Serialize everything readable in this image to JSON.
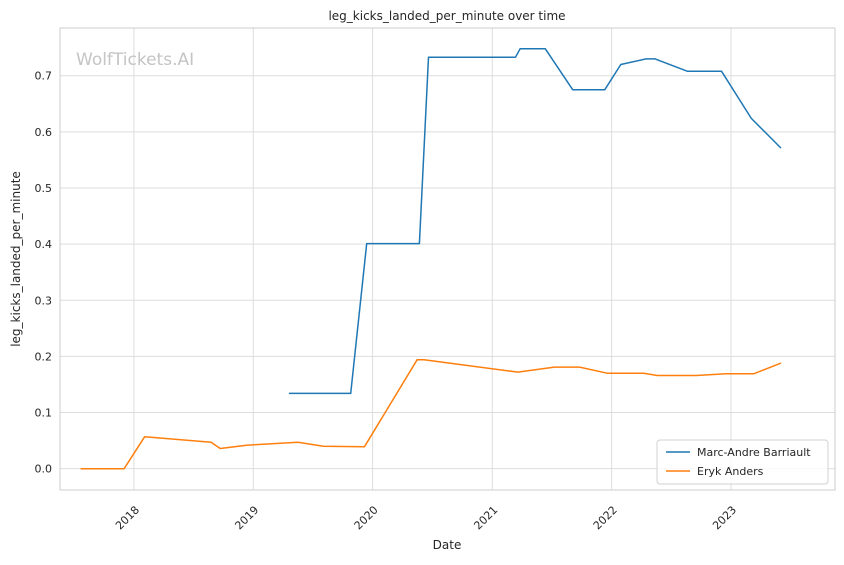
{
  "chart_data": {
    "type": "line",
    "title": "leg_kicks_landed_per_minute over time",
    "xlabel": "Date",
    "ylabel": "leg_kicks_landed_per_minute",
    "watermark": "WolfTickets.AI",
    "x_ticks": [
      "2018",
      "2019",
      "2020",
      "2021",
      "2022",
      "2023"
    ],
    "y_ticks": [
      "0.0",
      "0.1",
      "0.2",
      "0.3",
      "0.4",
      "0.5",
      "0.6",
      "0.7"
    ],
    "xlim": [
      "2017-05-20",
      "2023-11-15"
    ],
    "ylim": [
      -0.038,
      0.785
    ],
    "grid": true,
    "legend_position": "lower-right",
    "series": [
      {
        "name": "Marc-Andre Barriault",
        "color": "#1f77b4",
        "points": [
          [
            "2019-04-20",
            0.134
          ],
          [
            "2019-10-26",
            0.134
          ],
          [
            "2019-12-14",
            0.401
          ],
          [
            "2020-05-23",
            0.401
          ],
          [
            "2020-06-20",
            0.733
          ],
          [
            "2021-03-13",
            0.733
          ],
          [
            "2021-03-27",
            0.748
          ],
          [
            "2021-06-12",
            0.748
          ],
          [
            "2021-09-04",
            0.675
          ],
          [
            "2021-12-11",
            0.675
          ],
          [
            "2022-01-29",
            0.72
          ],
          [
            "2022-04-16",
            0.73
          ],
          [
            "2022-05-14",
            0.73
          ],
          [
            "2022-08-20",
            0.708
          ],
          [
            "2022-12-03",
            0.708
          ],
          [
            "2023-03-04",
            0.624
          ],
          [
            "2023-06-03",
            0.571
          ]
        ]
      },
      {
        "name": "Eryk Anders",
        "color": "#ff7f0e",
        "points": [
          [
            "2017-07-22",
            0.0
          ],
          [
            "2017-12-02",
            0.0
          ],
          [
            "2018-02-03",
            0.057
          ],
          [
            "2018-08-25",
            0.047
          ],
          [
            "2018-09-22",
            0.036
          ],
          [
            "2018-12-15",
            0.042
          ],
          [
            "2019-05-18",
            0.047
          ],
          [
            "2019-08-03",
            0.04
          ],
          [
            "2019-12-07",
            0.039
          ],
          [
            "2020-05-16",
            0.194
          ],
          [
            "2020-06-06",
            0.194
          ],
          [
            "2021-03-20",
            0.172
          ],
          [
            "2021-07-10",
            0.181
          ],
          [
            "2021-09-25",
            0.181
          ],
          [
            "2021-12-18",
            0.17
          ],
          [
            "2022-04-09",
            0.17
          ],
          [
            "2022-05-21",
            0.166
          ],
          [
            "2022-09-17",
            0.166
          ],
          [
            "2022-12-17",
            0.169
          ],
          [
            "2023-03-11",
            0.169
          ],
          [
            "2023-06-03",
            0.188
          ]
        ]
      }
    ]
  }
}
